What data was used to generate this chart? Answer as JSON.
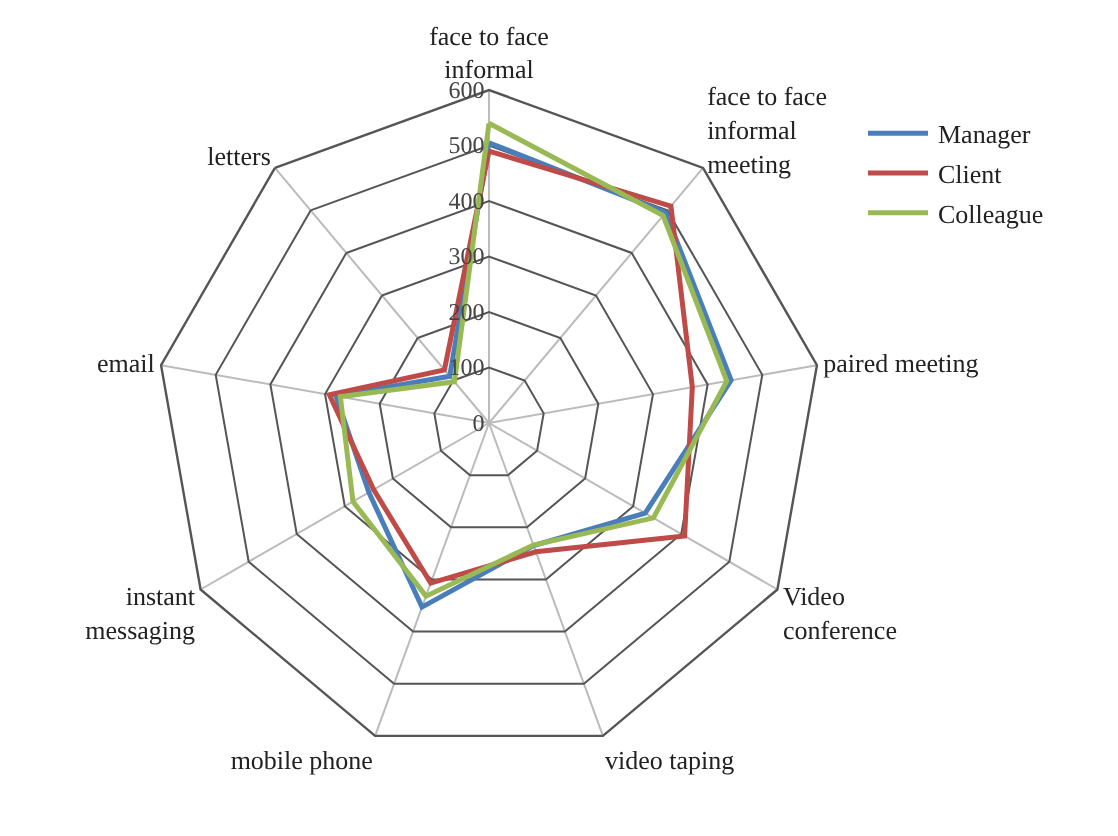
{
  "chart_data": {
    "type": "radar",
    "categories": [
      "face to face informal",
      "face to face informal meeting",
      "paired meeting",
      "Video conference",
      "video taping",
      "mobile phone",
      "instant messaging",
      "email",
      "letters"
    ],
    "series": [
      {
        "name": "Manager",
        "color": "#4a7ebb",
        "values": [
          505,
          495,
          443,
          325,
          235,
          353,
          250,
          280,
          110
        ]
      },
      {
        "name": "Client",
        "color": "#be4b48",
        "values": [
          490,
          510,
          372,
          407,
          247,
          307,
          240,
          292,
          125
        ]
      },
      {
        "name": "Colleague",
        "color": "#98b954",
        "values": [
          540,
          488,
          435,
          342,
          234,
          332,
          283,
          272,
          97
        ]
      }
    ],
    "ylim": [
      0,
      600
    ],
    "yticks": [
      0,
      100,
      200,
      300,
      400,
      500,
      600
    ],
    "grid": true,
    "legend": "top right"
  }
}
